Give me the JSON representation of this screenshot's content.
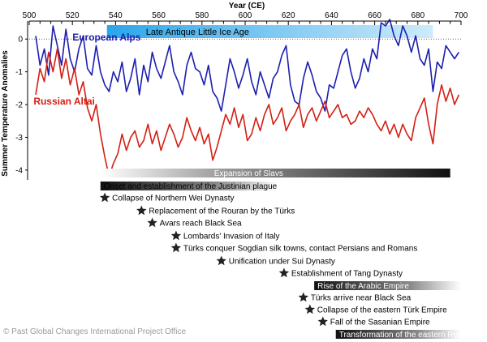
{
  "credit": "© Past Global Changes International Project Office",
  "chart_data": {
    "type": "line",
    "title": "",
    "xlabel": "Year (CE)",
    "ylabel": "Summer Temperature Anomalies",
    "xlim": [
      500,
      700
    ],
    "ylim": [
      -4.3,
      0.5
    ],
    "x_ticks": [
      500,
      520,
      540,
      560,
      580,
      600,
      620,
      640,
      660,
      680,
      700
    ],
    "y_ticks": [
      0,
      -1,
      -2,
      -3,
      -4
    ],
    "zero_line": true,
    "period_band": {
      "label": "Late Antique Little Ice Age",
      "start": 536,
      "end": 687,
      "color": "#4fb3ec"
    },
    "series": [
      {
        "name": "European Alps",
        "color": "#1c1fb0",
        "x": [
          503,
          505,
          507,
          509,
          511,
          513,
          515,
          517,
          519,
          521,
          523,
          525,
          527,
          529,
          531,
          533,
          535,
          537,
          539,
          541,
          543,
          545,
          547,
          549,
          551,
          553,
          555,
          557,
          559,
          561,
          563,
          565,
          567,
          569,
          571,
          573,
          575,
          577,
          579,
          581,
          583,
          585,
          587,
          589,
          591,
          593,
          595,
          597,
          599,
          601,
          603,
          605,
          607,
          609,
          611,
          613,
          615,
          617,
          619,
          621,
          623,
          625,
          627,
          629,
          631,
          633,
          635,
          637,
          639,
          641,
          643,
          645,
          647,
          649,
          651,
          653,
          655,
          657,
          659,
          661,
          663,
          665,
          667,
          669,
          671,
          673,
          675,
          677,
          679,
          681,
          683,
          685,
          687,
          689,
          691,
          693,
          695,
          697,
          699
        ],
        "values": [
          0.1,
          -0.8,
          -0.3,
          -1.1,
          0.4,
          -0.2,
          -0.8,
          0.3,
          -0.6,
          -1.0,
          -0.3,
          0.1,
          -0.9,
          -1.1,
          -0.2,
          -1.0,
          -1.4,
          -1.6,
          -1.0,
          -1.3,
          -0.7,
          -1.6,
          -1.2,
          -0.6,
          -1.7,
          -0.8,
          -1.3,
          -0.4,
          -0.9,
          -1.2,
          -0.7,
          -0.2,
          -1.0,
          -1.3,
          -1.7,
          -0.8,
          -0.4,
          -0.9,
          -1.0,
          -1.4,
          -0.8,
          -1.6,
          -1.8,
          -2.2,
          -1.4,
          -0.6,
          -1.0,
          -1.5,
          -1.1,
          -0.6,
          -1.3,
          -1.7,
          -1.0,
          -1.4,
          -1.8,
          -1.2,
          -1.0,
          -0.5,
          -0.2,
          -1.4,
          -1.9,
          -2.0,
          -1.2,
          -0.7,
          -1.1,
          -1.6,
          -1.8,
          -2.2,
          -1.4,
          -1.5,
          -1.0,
          -0.5,
          -0.3,
          -1.0,
          -1.5,
          -1.2,
          -0.6,
          -1.0,
          -0.3,
          -0.6,
          0.5,
          0.4,
          0.6,
          0.1,
          -0.2,
          0.4,
          0.1,
          -0.4,
          0.1,
          -0.6,
          -0.8,
          -0.3,
          -1.6,
          -0.7,
          -0.9,
          -0.2,
          -0.4,
          -0.6,
          -0.4
        ]
      },
      {
        "name": "Russian Altai",
        "color": "#d41f14",
        "x": [
          503,
          505,
          507,
          509,
          511,
          513,
          515,
          517,
          519,
          521,
          523,
          525,
          527,
          529,
          531,
          533,
          535,
          537,
          539,
          541,
          543,
          545,
          547,
          549,
          551,
          553,
          555,
          557,
          559,
          561,
          563,
          565,
          567,
          569,
          571,
          573,
          575,
          577,
          579,
          581,
          583,
          585,
          587,
          589,
          591,
          593,
          595,
          597,
          599,
          601,
          603,
          605,
          607,
          609,
          611,
          613,
          615,
          617,
          619,
          621,
          623,
          625,
          627,
          629,
          631,
          633,
          635,
          637,
          639,
          641,
          643,
          645,
          647,
          649,
          651,
          653,
          655,
          657,
          659,
          661,
          663,
          665,
          667,
          669,
          671,
          673,
          675,
          677,
          679,
          681,
          683,
          685,
          687,
          689,
          691,
          693,
          695,
          697,
          699
        ],
        "values": [
          -1.7,
          -0.9,
          -1.3,
          -0.4,
          -1.0,
          -0.3,
          -1.2,
          -0.6,
          -1.4,
          -0.9,
          -1.7,
          -1.3,
          -2.1,
          -2.5,
          -2.0,
          -2.9,
          -3.6,
          -4.2,
          -3.8,
          -3.5,
          -2.9,
          -3.4,
          -3.0,
          -2.8,
          -3.3,
          -3.1,
          -2.6,
          -3.2,
          -2.8,
          -3.4,
          -3.0,
          -2.6,
          -2.9,
          -3.3,
          -3.0,
          -2.4,
          -2.8,
          -3.1,
          -2.7,
          -3.2,
          -2.9,
          -3.7,
          -3.3,
          -2.8,
          -2.3,
          -2.6,
          -2.1,
          -2.7,
          -2.3,
          -3.1,
          -2.9,
          -2.4,
          -2.8,
          -2.3,
          -2.0,
          -2.6,
          -2.4,
          -2.1,
          -2.8,
          -2.5,
          -2.3,
          -2.0,
          -2.7,
          -2.3,
          -2.1,
          -2.5,
          -2.2,
          -1.9,
          -2.4,
          -2.2,
          -2.0,
          -2.4,
          -2.3,
          -2.6,
          -2.5,
          -2.2,
          -2.4,
          -2.1,
          -2.3,
          -2.6,
          -2.8,
          -2.5,
          -2.9,
          -2.6,
          -3.0,
          -2.6,
          -2.9,
          -3.1,
          -2.4,
          -2.1,
          -1.8,
          -2.6,
          -3.2,
          -2.0,
          -1.4,
          -1.9,
          -1.5,
          -2.0,
          -1.7
        ]
      }
    ],
    "series_labels": [
      {
        "text": "European Alps",
        "color": "#1c1fb0",
        "at": [
          520,
          -0.05
        ]
      },
      {
        "text": "Russian Altai",
        "color": "#d41f14",
        "at": [
          502,
          -2.0
        ]
      }
    ],
    "event_bars": [
      {
        "label": "Expansion of Slavs",
        "start": 533,
        "end": 695
      },
      {
        "label": "Onset and establishment of the Justinian plague",
        "start": 533,
        "end": 615
      },
      {
        "label": "Rise of the Arabic Empire",
        "start": 632,
        "end": 700
      },
      {
        "label": "Transformation of the eastern Roman Empire",
        "start": 642,
        "end": 700
      }
    ],
    "events": [
      {
        "label": "Collapse of Northern Wei Dynasty",
        "year": 535
      },
      {
        "label": "Replacement of the Rouran by the Türks",
        "year": 552
      },
      {
        "label": "Avars reach Black Sea",
        "year": 557
      },
      {
        "label": "Lombards' Invasion of Italy",
        "year": 568
      },
      {
        "label": "Türks conquer Sogdian silk towns, contact Persians and Romans",
        "year": 568
      },
      {
        "label": "Unification under Sui Dynasty",
        "year": 589
      },
      {
        "label": "Establishment of Tang Dynasty",
        "year": 618
      },
      {
        "label": "Türks arrive near Black Sea",
        "year": 627
      },
      {
        "label": "Collapse of the eastern Türk Empire",
        "year": 630
      },
      {
        "label": "Fall of the Sasanian Empire",
        "year": 636
      }
    ]
  }
}
